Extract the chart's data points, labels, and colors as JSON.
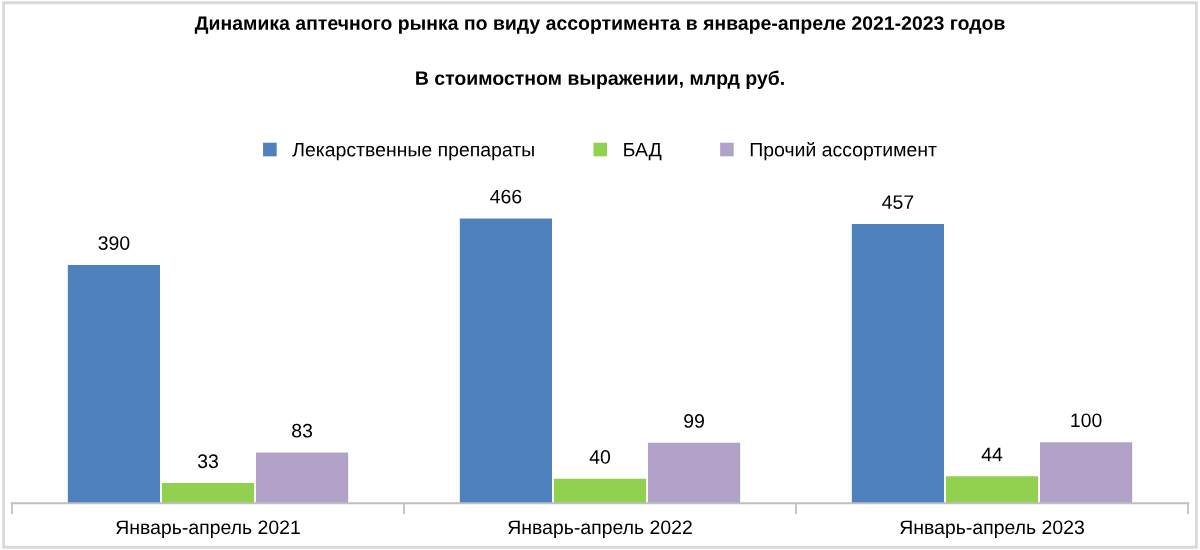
{
  "chart_data": {
    "type": "bar",
    "title": "Динамика аптечного рынка по виду ассортимента в январе-апреле 2021-2023 годов",
    "subtitle": "В стоимостном выражении, млрд руб.",
    "categories": [
      "Январь-апрель 2021",
      "Январь-апрель 2022",
      "Январь-апрель 2023"
    ],
    "series": [
      {
        "name": "Лекарственные препараты",
        "color": "#4f81bd",
        "values": [
          390,
          466,
          457
        ]
      },
      {
        "name": "БАД",
        "color": "#92d050",
        "values": [
          33,
          40,
          44
        ]
      },
      {
        "name": "Прочий ассортимент",
        "color": "#b3a2c7",
        "values": [
          83,
          99,
          100
        ]
      }
    ],
    "data_labels": true,
    "legend": "top"
  }
}
